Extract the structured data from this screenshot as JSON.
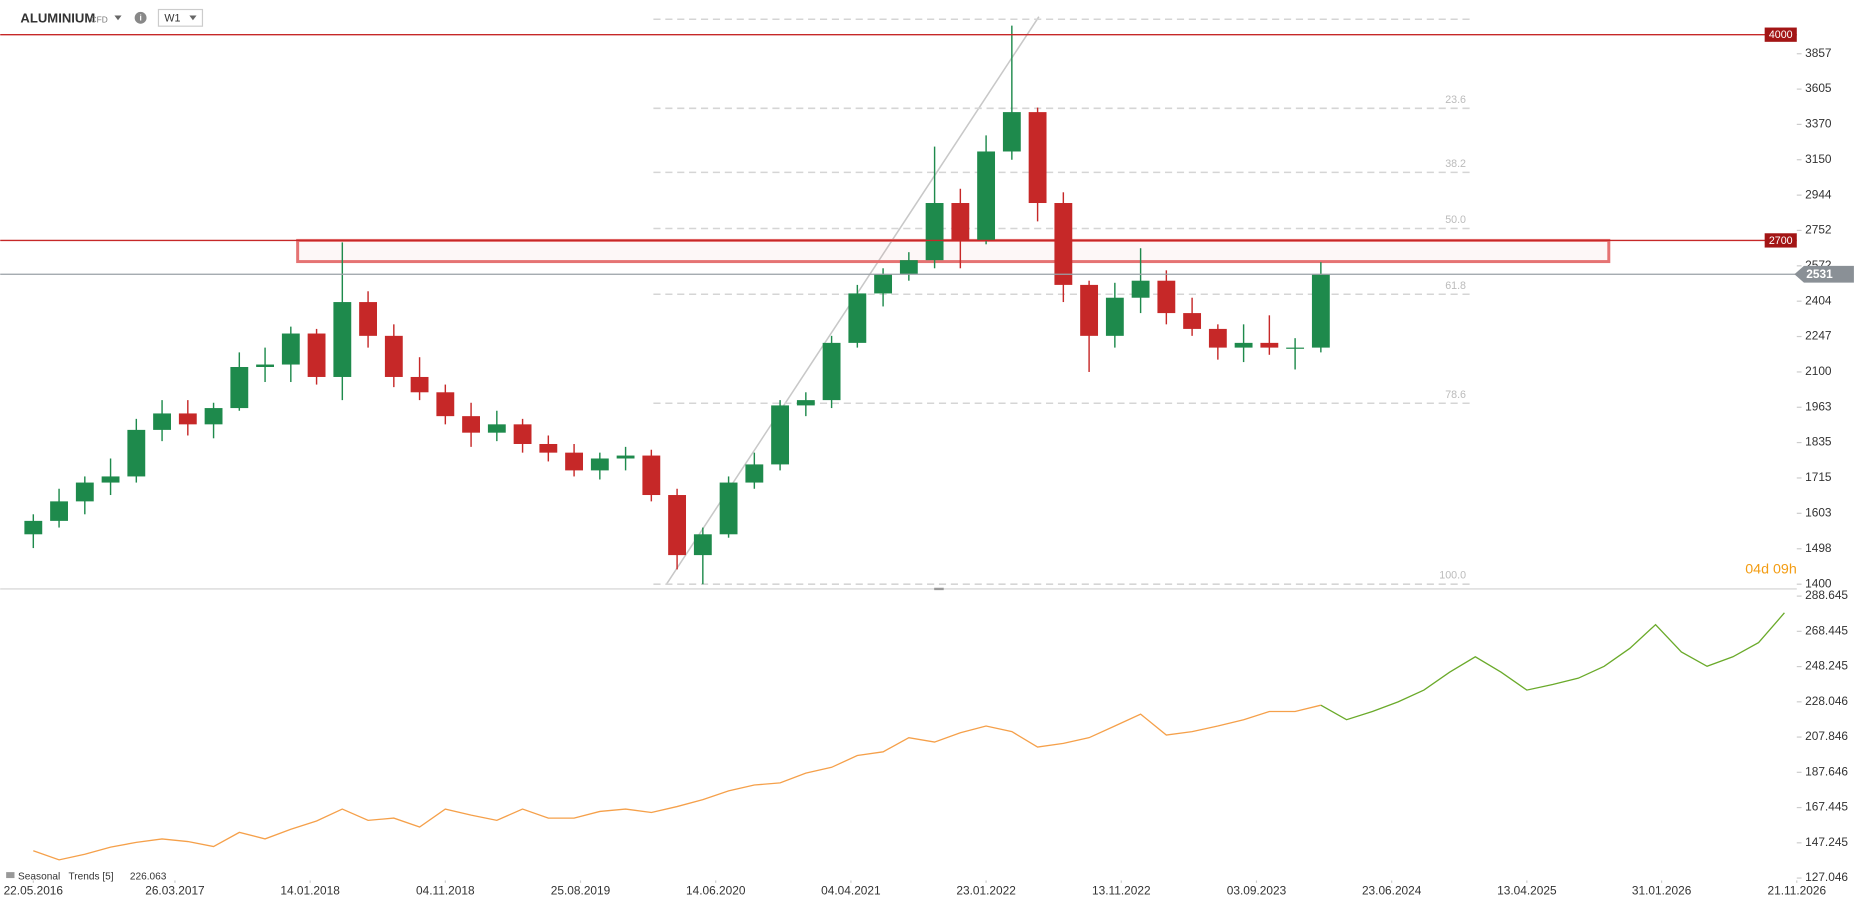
{
  "header": {
    "symbol": "ALUMINIUM",
    "instrument_type": "CFD",
    "interval": "W1"
  },
  "chart_data": [
    {
      "type": "candlestick",
      "log": true,
      "grid": false,
      "xlim": [
        "11.03.2016",
        "21.11.2026"
      ],
      "ylim": [
        1400,
        4178
      ],
      "yticks": [
        3857,
        3605,
        3370,
        3150,
        2944,
        2752,
        2572,
        2404,
        2247,
        2100,
        1963,
        1835,
        1715,
        1603,
        1498,
        1400
      ],
      "up_color": "#1e8a4c",
      "down_color": "#c62828",
      "x": [
        "22.05.2016",
        "17.07.2016",
        "11.09.2016",
        "06.11.2016",
        "01.01.2017",
        "26.02.2017",
        "23.04.2017",
        "18.06.2017",
        "13.08.2017",
        "08.10.2017",
        "03.12.2017",
        "28.01.2018",
        "25.03.2018",
        "20.05.2018",
        "15.07.2018",
        "09.09.2018",
        "04.11.2018",
        "30.12.2018",
        "24.02.2019",
        "21.04.2019",
        "16.06.2019",
        "11.08.2019",
        "06.10.2019",
        "01.12.2019",
        "26.01.2020",
        "22.03.2020",
        "17.05.2020",
        "12.07.2020",
        "06.09.2020",
        "01.11.2020",
        "27.12.2020",
        "21.02.2021",
        "18.04.2021",
        "13.06.2021",
        "08.08.2021",
        "03.10.2021",
        "28.11.2021",
        "23.01.2022",
        "20.03.2022",
        "15.05.2022",
        "10.07.2022",
        "04.09.2022",
        "30.10.2022",
        "25.12.2022",
        "19.02.2023",
        "16.04.2023",
        "11.06.2023",
        "06.08.2023",
        "01.10.2023",
        "26.11.2023",
        "21.01.2024"
      ],
      "open": [
        1540,
        1580,
        1640,
        1700,
        1720,
        1880,
        1940,
        1900,
        1960,
        2120,
        2130,
        2260,
        2080,
        2400,
        2250,
        2080,
        2020,
        1930,
        1870,
        1900,
        1830,
        1800,
        1740,
        1780,
        1790,
        1660,
        1480,
        1540,
        1700,
        1760,
        1970,
        1990,
        2220,
        2440,
        2530,
        2600,
        2900,
        2700,
        3200,
        3450,
        2900,
        2480,
        2250,
        2420,
        2500,
        2350,
        2280,
        2200,
        2220,
        2200,
        2200
      ],
      "high": [
        1600,
        1680,
        1720,
        1780,
        1920,
        1990,
        1990,
        1980,
        2180,
        2200,
        2290,
        2280,
        2690,
        2450,
        2300,
        2160,
        2050,
        1980,
        1950,
        1920,
        1860,
        1830,
        1800,
        1820,
        1810,
        1680,
        1560,
        1720,
        1800,
        1990,
        2020,
        2250,
        2480,
        2560,
        2640,
        3230,
        2980,
        3300,
        4070,
        3480,
        2960,
        2500,
        2490,
        2660,
        2550,
        2420,
        2300,
        2300,
        2340,
        2240,
        2590
      ],
      "low": [
        1500,
        1560,
        1600,
        1660,
        1700,
        1840,
        1860,
        1850,
        1950,
        2060,
        2060,
        2050,
        1990,
        2200,
        2040,
        1990,
        1900,
        1820,
        1840,
        1800,
        1770,
        1720,
        1710,
        1740,
        1640,
        1440,
        1400,
        1530,
        1680,
        1740,
        1930,
        1960,
        2200,
        2380,
        2500,
        2560,
        2560,
        2680,
        3150,
        2800,
        2400,
        2100,
        2200,
        2350,
        2300,
        2250,
        2150,
        2140,
        2170,
        2110,
        2180
      ],
      "close": [
        1580,
        1640,
        1700,
        1720,
        1880,
        1940,
        1900,
        1960,
        2120,
        2130,
        2260,
        2080,
        2400,
        2250,
        2080,
        2020,
        1930,
        1870,
        1900,
        1830,
        1800,
        1740,
        1780,
        1790,
        1660,
        1480,
        1540,
        1700,
        1760,
        1970,
        1990,
        2220,
        2440,
        2530,
        2600,
        2900,
        2700,
        3200,
        3450,
        2900,
        2480,
        2250,
        2420,
        2500,
        2350,
        2280,
        2200,
        2220,
        2200,
        2200,
        2531
      ],
      "horizontal_lines": [
        4000,
        2700
      ],
      "hline_color": "#c62828",
      "last_price": 2531,
      "last_price_color": "#8a9096",
      "zone": [
        2593,
        2700
      ],
      "zone_color": "#e57373",
      "fibonacci": {
        "levels": [
          4120,
          3475,
          3075,
          2762,
          2436,
          1978,
          1400
        ],
        "labels": [
          null,
          "23.6",
          "38.2",
          "50.0",
          "61.8",
          "78.6",
          "100.0"
        ]
      },
      "countdown": "04d 09h"
    },
    {
      "type": "line",
      "grid": false,
      "title": "Seasonal   Trends [5]",
      "current_value": 226.063,
      "xlim": [
        "11.03.2016",
        "21.11.2026"
      ],
      "ylim": [
        127.046,
        288.645
      ],
      "yticks": [
        288.645,
        268.445,
        248.245,
        228.046,
        207.846,
        187.646,
        167.445,
        147.245,
        127.046
      ],
      "xticks": [
        "22.05.2016",
        "26.03.2017",
        "14.01.2018",
        "04.11.2018",
        "25.08.2019",
        "14.06.2020",
        "04.04.2021",
        "23.01.2022",
        "13.11.2022",
        "03.09.2023",
        "23.06.2024",
        "13.04.2025",
        "31.01.2026",
        "21.11.2026"
      ],
      "x": [
        "22.05.2016",
        "17.07.2016",
        "11.09.2016",
        "06.11.2016",
        "01.01.2017",
        "26.02.2017",
        "23.04.2017",
        "18.06.2017",
        "13.08.2017",
        "08.10.2017",
        "03.12.2017",
        "28.01.2018",
        "25.03.2018",
        "20.05.2018",
        "15.07.2018",
        "09.09.2018",
        "04.11.2018",
        "30.12.2018",
        "24.02.2019",
        "21.04.2019",
        "16.06.2019",
        "11.08.2019",
        "06.10.2019",
        "01.12.2019",
        "26.01.2020",
        "22.03.2020",
        "17.05.2020",
        "12.07.2020",
        "06.09.2020",
        "01.11.2020",
        "27.12.2020",
        "21.02.2021",
        "18.04.2021",
        "13.06.2021",
        "08.08.2021",
        "03.10.2021",
        "28.11.2021",
        "23.01.2022",
        "20.03.2022",
        "15.05.2022",
        "10.07.2022",
        "04.09.2022",
        "30.10.2022",
        "25.12.2022",
        "19.02.2023",
        "16.04.2023",
        "11.06.2023",
        "06.08.2023",
        "01.10.2023",
        "26.11.2023",
        "21.01.2024",
        "17.03.2024",
        "12.05.2024",
        "07.07.2024",
        "01.09.2024",
        "27.10.2024",
        "22.12.2024",
        "16.02.2025",
        "13.04.2025",
        "08.06.2025",
        "03.08.2025",
        "28.09.2025",
        "23.11.2025",
        "18.01.2026",
        "15.03.2026",
        "10.05.2026",
        "05.07.2026",
        "30.08.2026",
        "25.10.2026"
      ],
      "series": [
        {
          "color": "#f5a04a",
          "values": [
            142.7,
            137.5,
            140.7,
            144.8,
            147.5,
            149.5,
            148.0,
            145.1,
            153.2,
            149.5,
            155.0,
            159.8,
            166.6,
            160.1,
            161.4,
            156.3,
            166.6,
            163.1,
            160.1,
            166.6,
            161.4,
            161.4,
            165.2,
            166.6,
            164.6,
            168.0,
            172.0,
            177.0,
            180.4,
            181.6,
            187.2,
            190.5,
            197.3,
            199.4,
            207.5,
            205.0,
            210.3,
            214.2,
            211.0,
            202.1,
            204.2,
            207.5,
            214.2,
            221.0,
            209.0,
            211.0,
            214.2,
            217.8,
            222.5,
            222.5,
            226.1,
            null,
            null,
            null,
            null,
            null,
            null,
            null,
            null,
            null,
            null,
            null,
            null,
            null,
            null,
            null,
            null,
            null,
            null
          ]
        },
        {
          "color": "#6aaa2a",
          "values": [
            null,
            null,
            null,
            null,
            null,
            null,
            null,
            null,
            null,
            null,
            null,
            null,
            null,
            null,
            null,
            null,
            null,
            null,
            null,
            null,
            null,
            null,
            null,
            null,
            null,
            null,
            null,
            null,
            null,
            null,
            null,
            null,
            null,
            null,
            null,
            null,
            null,
            null,
            null,
            null,
            null,
            null,
            null,
            null,
            null,
            null,
            null,
            null,
            null,
            null,
            226.1,
            217.8,
            222.5,
            228.0,
            234.8,
            245.0,
            253.9,
            245.0,
            234.8,
            238.0,
            241.6,
            248.4,
            258.7,
            272.3,
            256.6,
            248.4,
            253.9,
            262.0,
            279.0
          ]
        }
      ]
    }
  ]
}
